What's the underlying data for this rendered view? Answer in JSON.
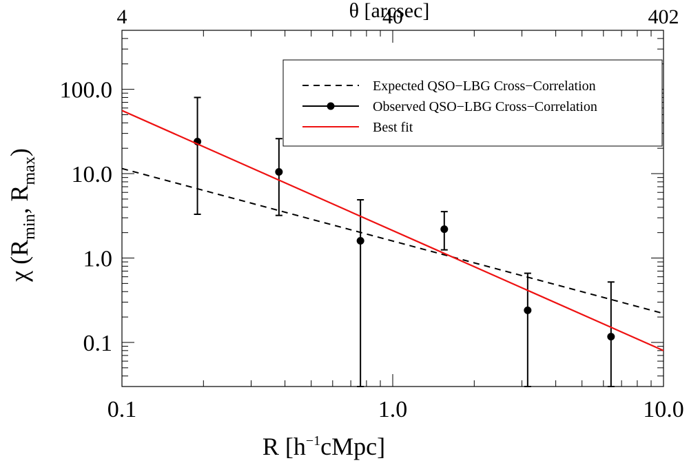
{
  "chart_data": {
    "type": "scatter",
    "title": "",
    "xlabel": "R  [h⁻¹cMpc]",
    "ylabel": "χ (R_min, R_max)",
    "top_xlabel": "θ  [arcsec]",
    "xscale": "log",
    "yscale": "log",
    "xlim": [
      0.1,
      10.0
    ],
    "ylim": [
      0.03,
      500
    ],
    "x_ticks": [
      0.1,
      1.0,
      10.0
    ],
    "x_tick_labels": [
      "0.1",
      "1.0",
      "10.0"
    ],
    "y_ticks": [
      0.1,
      1.0,
      10.0,
      100.0
    ],
    "y_tick_labels": [
      "0.1",
      "1.0",
      "10.0",
      "100.0"
    ],
    "top_x_ticks": [
      0.1,
      1.0,
      10.0
    ],
    "top_x_tick_labels": [
      "4",
      "40",
      "402"
    ],
    "legend_position": "top-right",
    "series": [
      {
        "name": "Expected QSO−LBG Cross−Correlation",
        "kind": "line",
        "style": "dashed",
        "color": "#000000",
        "x": [
          0.1,
          10.0
        ],
        "y": [
          11.5,
          0.22
        ]
      },
      {
        "name": "Observed QSO−LBG Cross−Correlation",
        "kind": "errorbar",
        "color": "#000000",
        "x": [
          0.19,
          0.38,
          0.76,
          1.55,
          3.15,
          6.4
        ],
        "y": [
          24.0,
          10.5,
          1.6,
          2.2,
          0.24,
          0.117
        ],
        "y_low": [
          3.3,
          3.2,
          0.03,
          1.25,
          0.03,
          0.03
        ],
        "y_high": [
          80.0,
          26.0,
          4.9,
          3.55,
          0.66,
          0.52
        ]
      },
      {
        "name": "Best fit",
        "kind": "line",
        "style": "solid",
        "color": "#ee1111",
        "x": [
          0.1,
          10.0
        ],
        "y": [
          56.0,
          0.08
        ]
      }
    ]
  }
}
